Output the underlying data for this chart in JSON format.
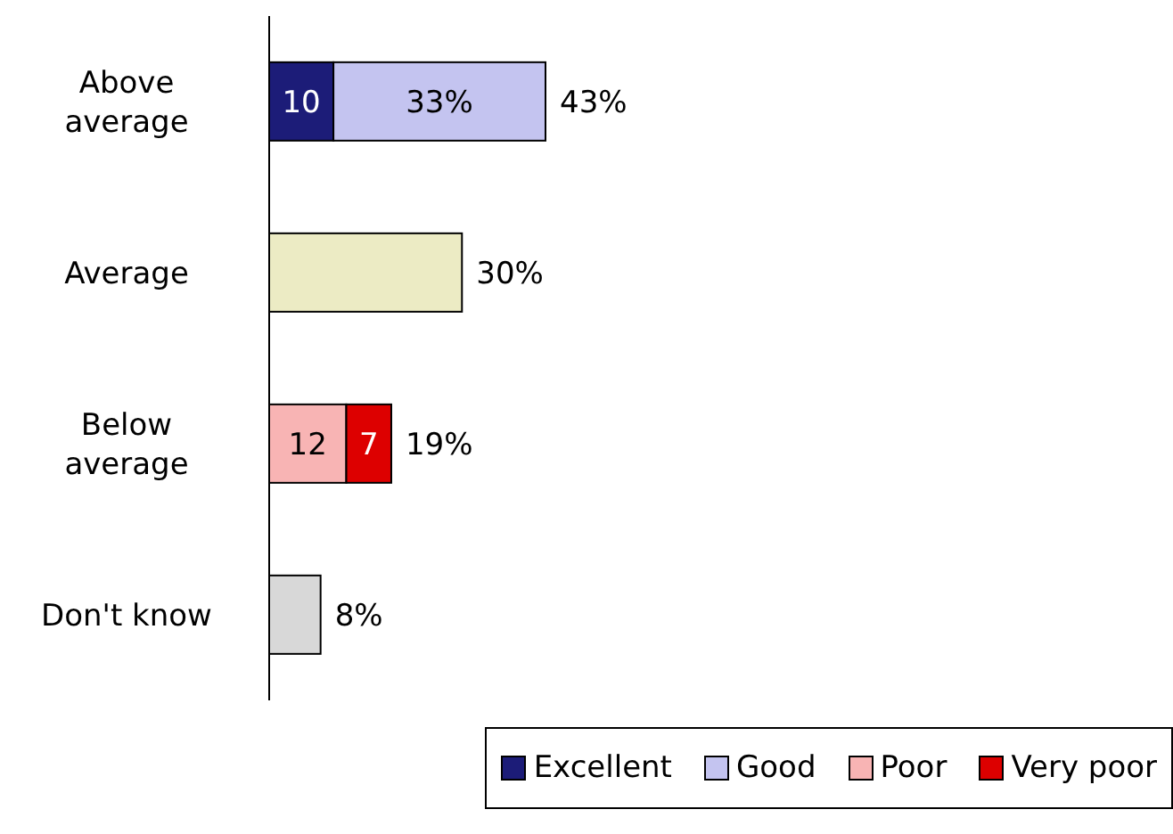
{
  "chart_data": {
    "type": "bar",
    "orientation": "horizontal",
    "stacked": true,
    "categories": [
      "Above average",
      "Average",
      "Below average",
      "Don't know"
    ],
    "series": [
      {
        "name": "Excellent",
        "color": "#1c1c78",
        "values": [
          10,
          null,
          null,
          null
        ],
        "value_labels": [
          "10",
          null,
          null,
          null
        ]
      },
      {
        "name": "Good",
        "color": "#c4c4f0",
        "values": [
          33,
          null,
          null,
          null
        ],
        "value_labels": [
          "33%",
          null,
          null,
          null
        ]
      },
      {
        "color": "#ecebc4",
        "values": [
          null,
          30,
          null,
          null
        ]
      },
      {
        "name": "Poor",
        "color": "#f8b4b4",
        "values": [
          null,
          null,
          12,
          null
        ],
        "value_labels": [
          null,
          null,
          "12",
          null
        ]
      },
      {
        "name": "Very poor",
        "color": "#dd0000",
        "values": [
          null,
          null,
          7,
          null
        ],
        "value_labels": [
          null,
          null,
          "7",
          null
        ]
      },
      {
        "color": "#d8d8d8",
        "values": [
          null,
          null,
          null,
          8
        ]
      }
    ],
    "totals": [
      "43%",
      "30%",
      "19%",
      "8%"
    ],
    "legend": "bottom right"
  }
}
